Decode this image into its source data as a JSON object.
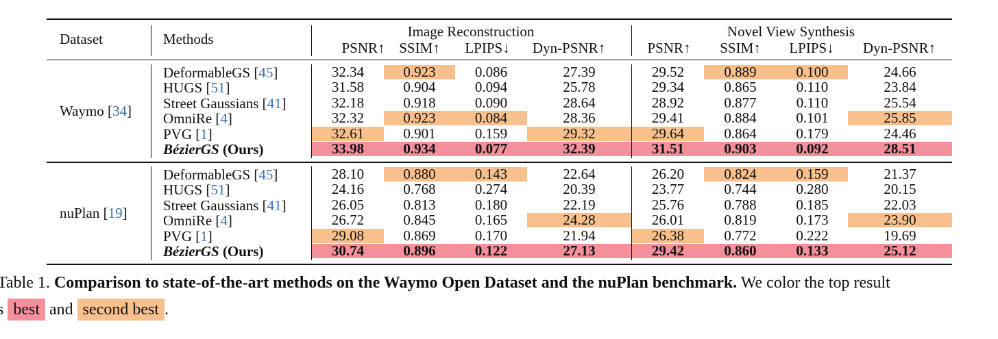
{
  "columns": {
    "dataset": "Dataset",
    "methods": "Methods",
    "group1": "Image Reconstruction",
    "group2": "Novel View Synthesis",
    "metrics": [
      "PSNR↑",
      "SSIM↑",
      "LPIPS↓",
      "Dyn-PSNR↑",
      "PSNR↑",
      "SSIM↑",
      "LPIPS↓",
      "Dyn-PSNR↑"
    ]
  },
  "sections": [
    {
      "dataset_name": "Waymo",
      "dataset_ref": "34",
      "rows": [
        {
          "name": "DeformableGS",
          "ref": "45",
          "values": [
            "32.34",
            "0.923",
            "0.086",
            "27.39",
            "29.52",
            "0.889",
            "0.100",
            "24.66"
          ],
          "hl": [
            "",
            "second",
            "",
            "",
            "",
            "second",
            "second",
            ""
          ]
        },
        {
          "name": "HUGS",
          "ref": "51",
          "values": [
            "31.58",
            "0.904",
            "0.094",
            "25.78",
            "29.34",
            "0.865",
            "0.110",
            "23.84"
          ],
          "hl": [
            "",
            "",
            "",
            "",
            "",
            "",
            "",
            ""
          ]
        },
        {
          "name": "Street Gaussians",
          "ref": "41",
          "values": [
            "32.18",
            "0.918",
            "0.090",
            "28.64",
            "28.92",
            "0.877",
            "0.110",
            "25.54"
          ],
          "hl": [
            "",
            "",
            "",
            "",
            "",
            "",
            "",
            ""
          ]
        },
        {
          "name": "OmniRe",
          "ref": "4",
          "values": [
            "32.32",
            "0.923",
            "0.084",
            "28.36",
            "29.41",
            "0.884",
            "0.101",
            "25.85"
          ],
          "hl": [
            "",
            "second",
            "second",
            "",
            "",
            "",
            "",
            "second"
          ]
        },
        {
          "name": "PVG",
          "ref": "1",
          "values": [
            "32.61",
            "0.901",
            "0.159",
            "29.32",
            "29.64",
            "0.864",
            "0.179",
            "24.46"
          ],
          "hl": [
            "second",
            "",
            "",
            "second",
            "second",
            "",
            "",
            ""
          ]
        },
        {
          "name": "BézierGS",
          "suffix": "(Ours)",
          "ours": true,
          "values": [
            "33.98",
            "0.934",
            "0.077",
            "32.39",
            "31.51",
            "0.903",
            "0.092",
            "28.51"
          ],
          "hl": [
            "best",
            "best",
            "best",
            "best",
            "best",
            "best",
            "best",
            "best"
          ]
        }
      ]
    },
    {
      "dataset_name": "nuPlan",
      "dataset_ref": "19",
      "rows": [
        {
          "name": "DeformableGS",
          "ref": "45",
          "values": [
            "28.10",
            "0.880",
            "0.143",
            "22.64",
            "26.20",
            "0.824",
            "0.159",
            "21.37"
          ],
          "hl": [
            "",
            "second",
            "second",
            "",
            "",
            "second",
            "second",
            ""
          ]
        },
        {
          "name": "HUGS",
          "ref": "51",
          "values": [
            "24.16",
            "0.768",
            "0.274",
            "20.39",
            "23.77",
            "0.744",
            "0.280",
            "20.15"
          ],
          "hl": [
            "",
            "",
            "",
            "",
            "",
            "",
            "",
            ""
          ]
        },
        {
          "name": "Street Gaussians",
          "ref": "41",
          "values": [
            "26.05",
            "0.813",
            "0.180",
            "22.19",
            "25.76",
            "0.788",
            "0.185",
            "22.03"
          ],
          "hl": [
            "",
            "",
            "",
            "",
            "",
            "",
            "",
            ""
          ]
        },
        {
          "name": "OmniRe",
          "ref": "4",
          "values": [
            "26.72",
            "0.845",
            "0.165",
            "24.28",
            "26.01",
            "0.819",
            "0.173",
            "23.90"
          ],
          "hl": [
            "",
            "",
            "",
            "second",
            "",
            "",
            "",
            "second"
          ]
        },
        {
          "name": "PVG",
          "ref": "1",
          "values": [
            "29.08",
            "0.869",
            "0.170",
            "21.94",
            "26.38",
            "0.772",
            "0.222",
            "19.69"
          ],
          "hl": [
            "second",
            "",
            "",
            "",
            "second",
            "",
            "",
            ""
          ]
        },
        {
          "name": "BézierGS",
          "suffix": "(Ours)",
          "ours": true,
          "values": [
            "30.74",
            "0.896",
            "0.122",
            "27.13",
            "29.42",
            "0.860",
            "0.133",
            "25.12"
          ],
          "hl": [
            "best",
            "best",
            "best",
            "best",
            "best",
            "best",
            "best",
            "best"
          ]
        }
      ]
    }
  ],
  "caption": {
    "label": "Table 1.",
    "title": "Comparison to state-of-the-art methods on the Waymo Open Dataset and the nuPlan benchmark.",
    "text1": "We color the top result",
    "text2a": "s",
    "best_label": "best",
    "and_word": "and",
    "second_label": "second best",
    "end": "."
  },
  "colors": {
    "best": "#f4909c",
    "second": "#f8c08c",
    "ref": "#3a6fb0"
  }
}
